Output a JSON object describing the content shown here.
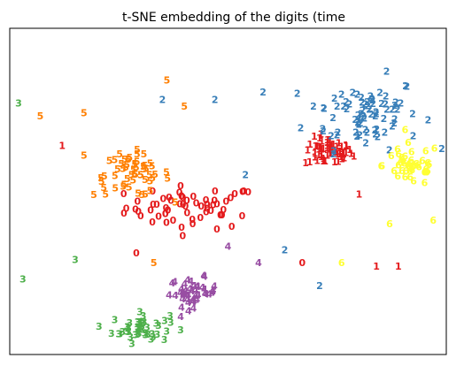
{
  "chart_data": {
    "type": "scatter",
    "title": "t-SNE embedding of the digits (time",
    "xlabel": "",
    "ylabel": "",
    "xlim": [
      0,
      1
    ],
    "ylim": [
      0,
      1
    ],
    "x_ticks": false,
    "y_ticks": false,
    "grid": false,
    "legend": "none",
    "series": [
      {
        "label": "0",
        "color": "#e41a1c",
        "cluster_center": [
          0.42,
          0.45
        ],
        "cluster_spread": [
          0.14,
          0.06
        ],
        "count": 60
      },
      {
        "label": "1",
        "color": "#e41a1c",
        "cluster_center": [
          0.73,
          0.62
        ],
        "cluster_spread": [
          0.05,
          0.04
        ],
        "count": 60
      },
      {
        "label": "2",
        "color": "#377eb8",
        "cluster_center": [
          0.81,
          0.74
        ],
        "cluster_spread": [
          0.12,
          0.1
        ],
        "count": 80
      },
      {
        "label": "3",
        "color": "#4daf4a",
        "cluster_center": [
          0.3,
          0.08
        ],
        "cluster_spread": [
          0.06,
          0.04
        ],
        "count": 45
      },
      {
        "label": "4",
        "color": "#984ea3",
        "cluster_center": [
          0.42,
          0.19
        ],
        "cluster_spread": [
          0.05,
          0.04
        ],
        "count": 45
      },
      {
        "label": "5",
        "color": "#ff7f00",
        "cluster_center": [
          0.28,
          0.55
        ],
        "cluster_spread": [
          0.08,
          0.06
        ],
        "count": 55
      },
      {
        "label": "6",
        "color": "#ffff33",
        "cluster_center": [
          0.92,
          0.58
        ],
        "cluster_spread": [
          0.06,
          0.06
        ],
        "count": 45
      }
    ],
    "outliers": [
      {
        "label": "3",
        "color": "#4daf4a",
        "x": 0.02,
        "y": 0.77
      },
      {
        "label": "3",
        "color": "#4daf4a",
        "x": 0.03,
        "y": 0.23
      },
      {
        "label": "3",
        "color": "#4daf4a",
        "x": 0.15,
        "y": 0.29
      },
      {
        "label": "5",
        "color": "#ff7f00",
        "x": 0.07,
        "y": 0.73
      },
      {
        "label": "5",
        "color": "#ff7f00",
        "x": 0.17,
        "y": 0.74
      },
      {
        "label": "5",
        "color": "#ff7f00",
        "x": 0.36,
        "y": 0.84
      },
      {
        "label": "5",
        "color": "#ff7f00",
        "x": 0.4,
        "y": 0.76
      },
      {
        "label": "5",
        "color": "#ff7f00",
        "x": 0.17,
        "y": 0.61
      },
      {
        "label": "5",
        "color": "#ff7f00",
        "x": 0.33,
        "y": 0.28
      },
      {
        "label": "1",
        "color": "#e41a1c",
        "x": 0.12,
        "y": 0.64
      },
      {
        "label": "1",
        "color": "#e41a1c",
        "x": 0.84,
        "y": 0.27
      },
      {
        "label": "1",
        "color": "#e41a1c",
        "x": 0.89,
        "y": 0.27
      },
      {
        "label": "1",
        "color": "#e41a1c",
        "x": 0.8,
        "y": 0.49
      },
      {
        "label": "2",
        "color": "#377eb8",
        "x": 0.35,
        "y": 0.78
      },
      {
        "label": "2",
        "color": "#377eb8",
        "x": 0.47,
        "y": 0.78
      },
      {
        "label": "2",
        "color": "#377eb8",
        "x": 0.71,
        "y": 0.21
      },
      {
        "label": "2",
        "color": "#377eb8",
        "x": 0.63,
        "y": 0.32
      },
      {
        "label": "2",
        "color": "#377eb8",
        "x": 0.54,
        "y": 0.55
      },
      {
        "label": "0",
        "color": "#e41a1c",
        "x": 0.67,
        "y": 0.28
      },
      {
        "label": "0",
        "color": "#e41a1c",
        "x": 0.29,
        "y": 0.31
      },
      {
        "label": "6",
        "color": "#ffff33",
        "x": 0.76,
        "y": 0.28
      },
      {
        "label": "6",
        "color": "#ffff33",
        "x": 0.87,
        "y": 0.4
      },
      {
        "label": "6",
        "color": "#ffff33",
        "x": 0.97,
        "y": 0.41
      },
      {
        "label": "4",
        "color": "#984ea3",
        "x": 0.57,
        "y": 0.28
      },
      {
        "label": "4",
        "color": "#984ea3",
        "x": 0.5,
        "y": 0.33
      }
    ]
  }
}
